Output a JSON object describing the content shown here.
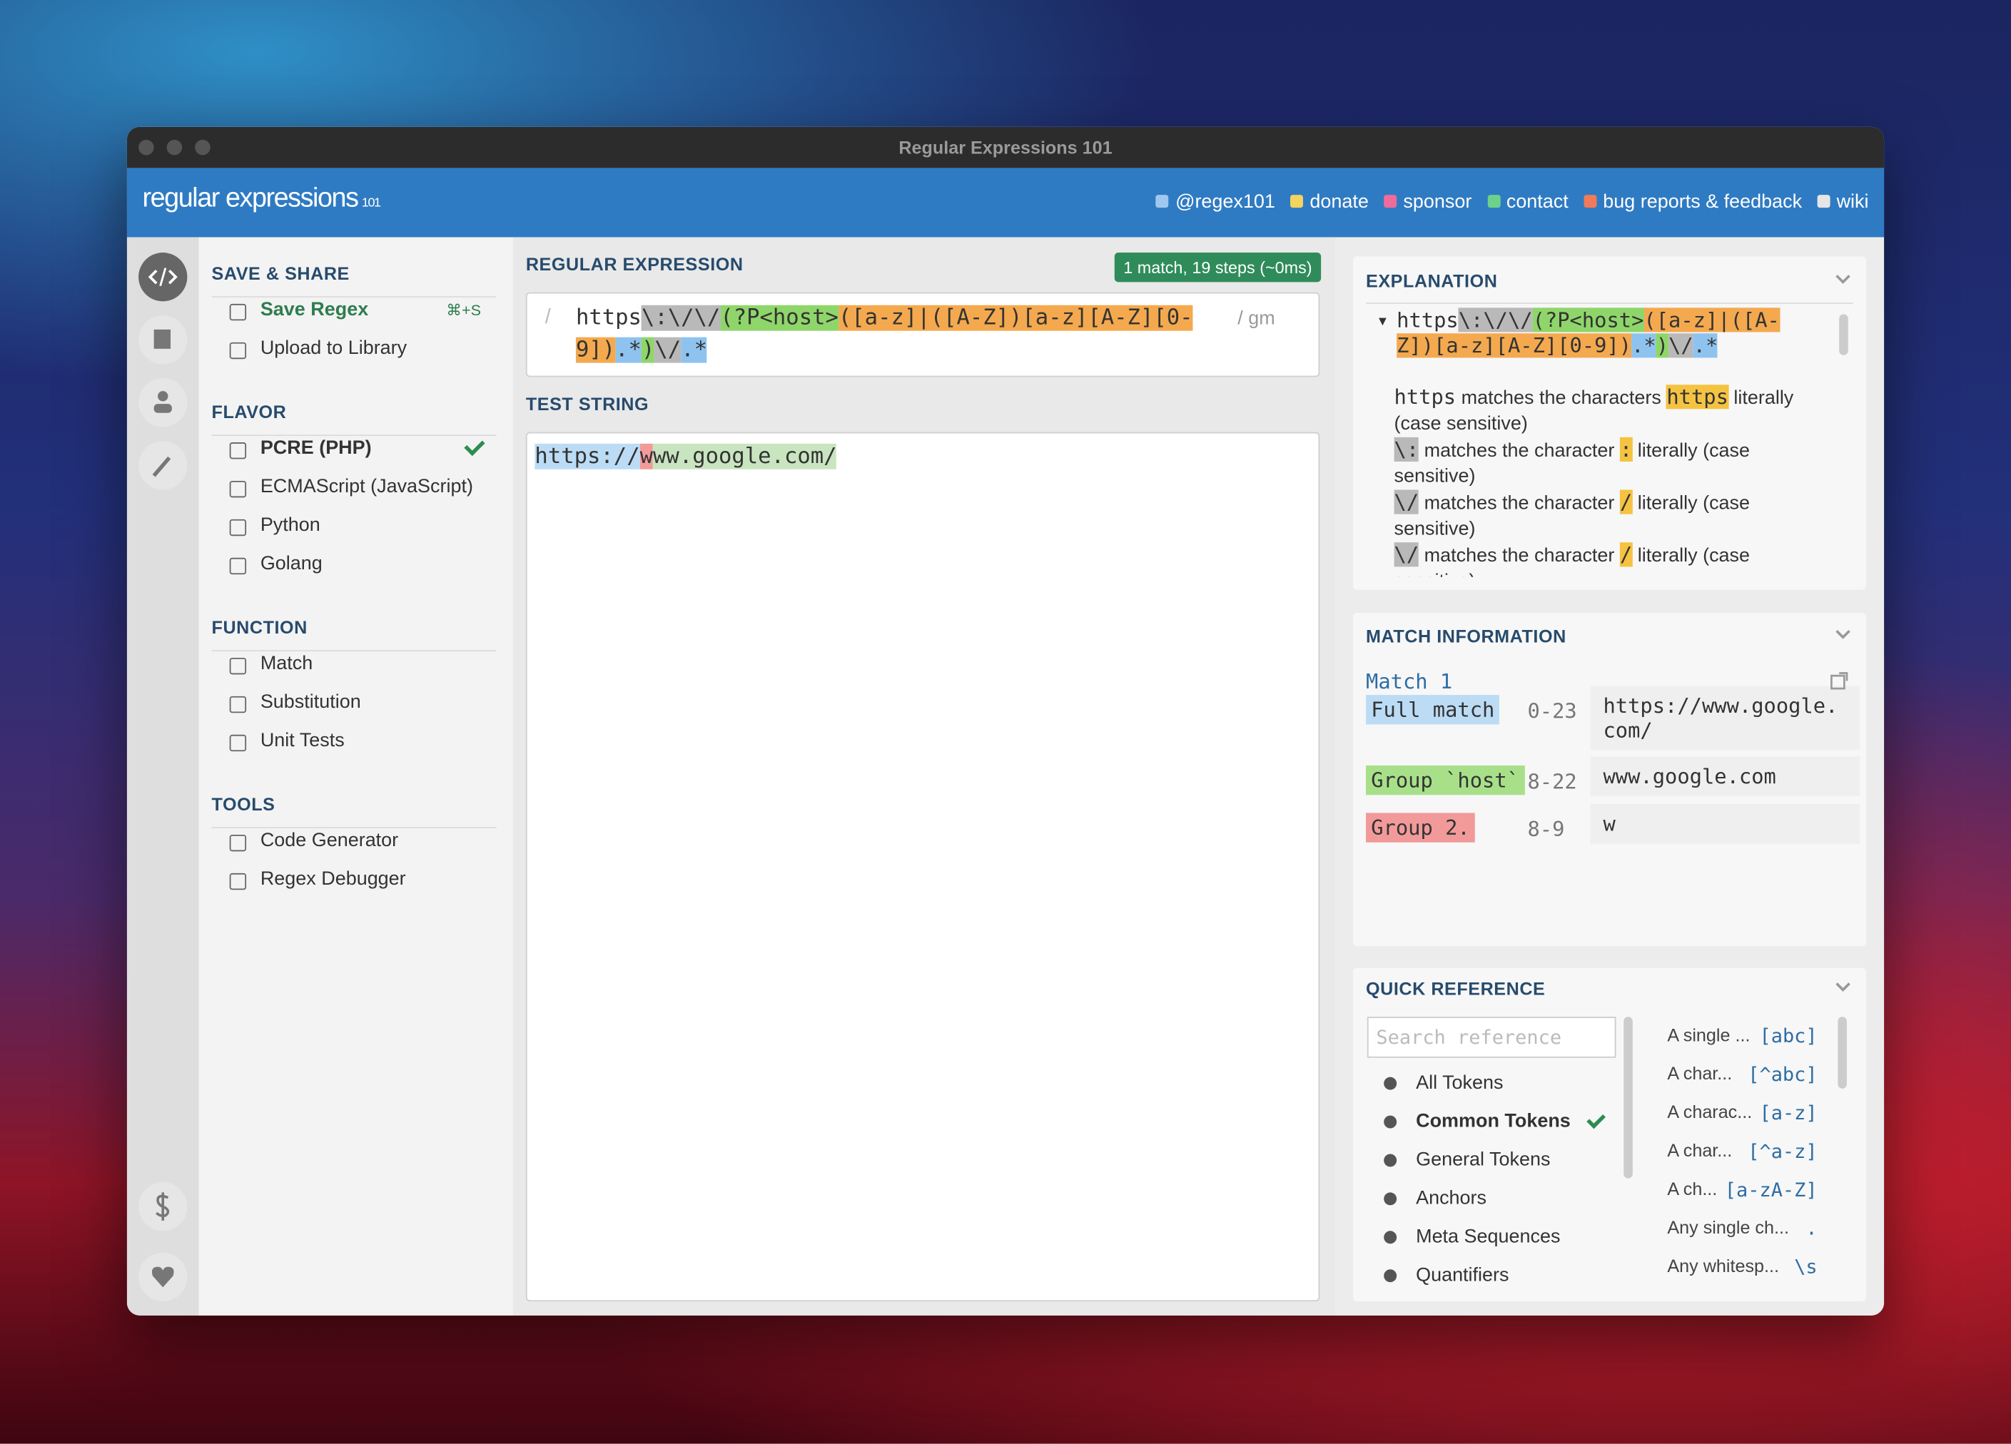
{
  "window": {
    "title": "Regular Expressions 101"
  },
  "header": {
    "logo": "regular expressions",
    "logo_sub": "101",
    "links": [
      {
        "label": "@regex101",
        "color": "#9fc8ef"
      },
      {
        "label": "donate",
        "color": "#f4d35e"
      },
      {
        "label": "sponsor",
        "color": "#f06b9a"
      },
      {
        "label": "contact",
        "color": "#6fd08c"
      },
      {
        "label": "bug reports & feedback",
        "color": "#f07a5a"
      },
      {
        "label": "wiki",
        "color": "#e6e6e6"
      }
    ]
  },
  "sidebar": {
    "sections": [
      {
        "title": "SAVE & SHARE",
        "items": [
          {
            "label": "Save Regex",
            "shortcut": "⌘+S",
            "color": "#2e7d4f"
          },
          {
            "label": "Upload to Library"
          }
        ]
      },
      {
        "title": "FLAVOR",
        "items": [
          {
            "label": "PCRE (PHP)",
            "selected": true
          },
          {
            "label": "ECMAScript (JavaScript)"
          },
          {
            "label": "Python"
          },
          {
            "label": "Golang"
          }
        ]
      },
      {
        "title": "FUNCTION",
        "items": [
          {
            "label": "Match"
          },
          {
            "label": "Substitution"
          },
          {
            "label": "Unit Tests"
          }
        ]
      },
      {
        "title": "TOOLS",
        "items": [
          {
            "label": "Code Generator"
          },
          {
            "label": "Regex Debugger"
          }
        ]
      }
    ]
  },
  "regex": {
    "title": "REGULAR EXPRESSION",
    "status": "1 match, 19 steps (~0ms)",
    "delimiter": "/",
    "closing": "/ gm",
    "tokens": [
      {
        "text": "https"
      },
      {
        "text": "\\:\\/\\/",
        "color": "#b9b9b9"
      },
      {
        "text": "(?P<host>",
        "color": "#8fd66a"
      },
      {
        "text": "([a-z]|([A-Z])[a-z][A-Z][0-9])",
        "color": "#f4a94f"
      },
      {
        "text": ".*",
        "color": "#8fc3ef"
      },
      {
        "text": ")",
        "color": "#8fd66a"
      },
      {
        "text": "\\/",
        "color": "#b9b9b9"
      },
      {
        "text": ".*",
        "color": "#8fc3ef"
      }
    ]
  },
  "test": {
    "title": "TEST STRING",
    "tokens": [
      {
        "text": "https://",
        "color": "#bcdcf5"
      },
      {
        "text": "w",
        "color": "#f29a9a"
      },
      {
        "text": "ww.google.com/",
        "color": "#c9e5c0"
      }
    ]
  },
  "explanation": {
    "title": "EXPLANATION",
    "lines": [
      {
        "token": "https",
        "text": "matches the characters",
        "char": "https",
        "rest": "literally (case sensitive)"
      },
      {
        "token": "\\:",
        "token_color": "#b9b9b9",
        "text": "matches the character",
        "char": ":",
        "rest": "literally (case sensitive)"
      },
      {
        "token": "\\/",
        "token_color": "#b9b9b9",
        "text": "matches the character",
        "char": "/",
        "rest": "literally (case sensitive)"
      },
      {
        "token": "\\/",
        "token_color": "#b9b9b9",
        "text": "matches the character",
        "char": "/",
        "rest": "literally (case sensitive)"
      }
    ]
  },
  "match_info": {
    "title": "MATCH INFORMATION",
    "match": "Match 1",
    "rows": [
      {
        "label": "Full match",
        "color": "#bcdcf5",
        "range": "0-23",
        "value": "https://www.google.com/"
      },
      {
        "label": "Group `host`",
        "color": "#a8e08a",
        "range": "8-22",
        "value": "www.google.com"
      },
      {
        "label": "Group 2.",
        "color": "#f29a9a",
        "range": "8-9",
        "value": "w"
      }
    ]
  },
  "quick_ref": {
    "title": "QUICK REFERENCE",
    "search": "Search reference",
    "categories": [
      {
        "label": "All Tokens"
      },
      {
        "label": "Common Tokens",
        "selected": true
      },
      {
        "label": "General Tokens"
      },
      {
        "label": "Anchors"
      },
      {
        "label": "Meta Sequences"
      },
      {
        "label": "Quantifiers"
      }
    ],
    "items": [
      {
        "label": "A single ...",
        "code": "[abc]"
      },
      {
        "label": "A char...",
        "code": "[^abc]"
      },
      {
        "label": "A charac...",
        "code": "[a-z]"
      },
      {
        "label": "A char...",
        "code": "[^a-z]"
      },
      {
        "label": "A ch...",
        "code": "[a-zA-Z]"
      },
      {
        "label": "Any single ch...",
        "code": "."
      },
      {
        "label": "Any whitesp...",
        "code": "\\s"
      }
    ]
  }
}
